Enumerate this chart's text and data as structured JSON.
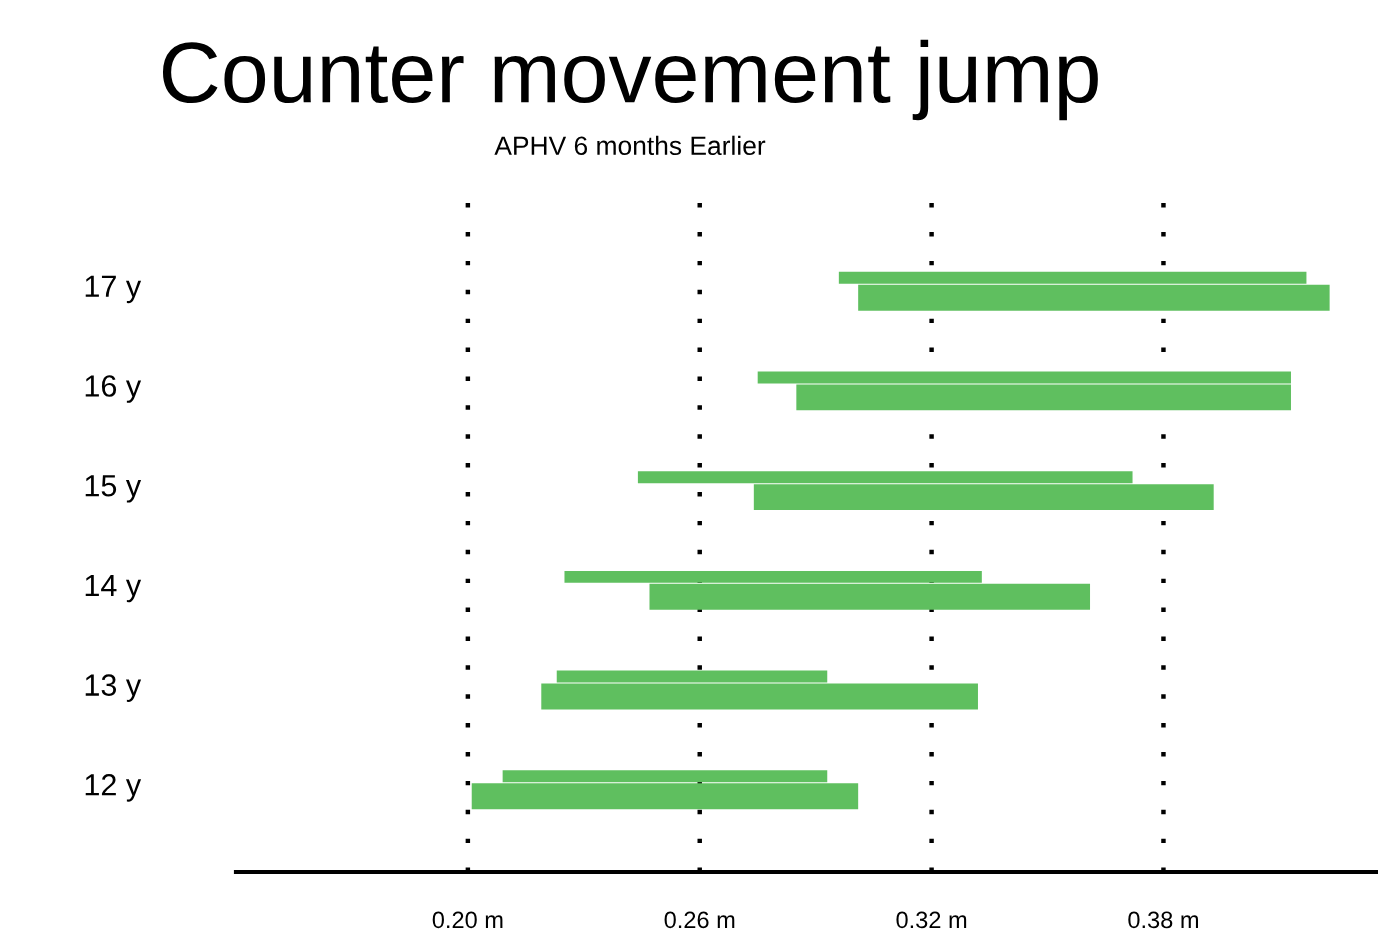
{
  "chart_data": {
    "type": "bar",
    "orientation": "horizontal",
    "title": "Counter movement jump",
    "subtitle": "APHV 6 months Earlier",
    "categories": [
      "17 y",
      "16 y",
      "15 y",
      "14 y",
      "13 y",
      "12 y"
    ],
    "series": [
      {
        "color": "#5fbf5f",
        "base": [
          0.296,
          0.275,
          0.244,
          0.225,
          0.223,
          0.209
        ],
        "values": [
          0.121,
          0.138,
          0.128,
          0.108,
          0.07,
          0.084
        ]
      },
      {
        "color": "#5fbf5f",
        "base": [
          0.301,
          0.285,
          0.274,
          0.247,
          0.219,
          0.201
        ],
        "values": [
          0.122,
          0.128,
          0.119,
          0.114,
          0.113,
          0.1
        ]
      }
    ],
    "xlim": [
      0.14,
      0.435
    ],
    "xticks": [
      {
        "value": 0.2,
        "label": "0.20 m"
      },
      {
        "value": 0.26,
        "label": "0.26 m"
      },
      {
        "value": 0.32,
        "label": "0.32 m"
      },
      {
        "value": 0.38,
        "label": "0.38 m"
      }
    ],
    "grid": "x",
    "legend": false
  }
}
